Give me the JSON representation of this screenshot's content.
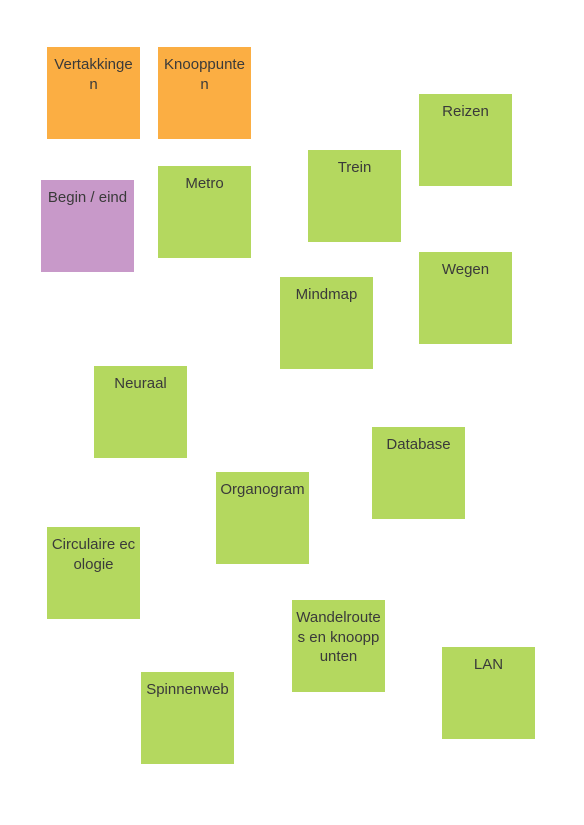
{
  "colors": {
    "orange": "#fbae43",
    "purple": "#c899c9",
    "green": "#b4d85f"
  },
  "notes": [
    {
      "id": "vertakkingen",
      "text": "Vertakkingen",
      "color": "orange"
    },
    {
      "id": "knooppunten",
      "text": "Knooppunten",
      "color": "orange"
    },
    {
      "id": "begin-eind",
      "text": "Begin / eind",
      "color": "purple"
    },
    {
      "id": "metro",
      "text": "Metro",
      "color": "green"
    },
    {
      "id": "trein",
      "text": "Trein",
      "color": "green"
    },
    {
      "id": "reizen",
      "text": "Reizen",
      "color": "green"
    },
    {
      "id": "mindmap",
      "text": "Mindmap",
      "color": "green"
    },
    {
      "id": "wegen",
      "text": "Wegen",
      "color": "green"
    },
    {
      "id": "neuraal",
      "text": "Neuraal",
      "color": "green"
    },
    {
      "id": "database",
      "text": "Database",
      "color": "green"
    },
    {
      "id": "organogram",
      "text": "Organogram",
      "color": "green"
    },
    {
      "id": "circulaire-ecologie",
      "text": "Circulaire ecologie",
      "color": "green"
    },
    {
      "id": "wandelroutes",
      "text": "Wandelroutes en knooppunten",
      "color": "green"
    },
    {
      "id": "lan",
      "text": "LAN",
      "color": "green"
    },
    {
      "id": "spinnenweb",
      "text": "Spinnenweb",
      "color": "green"
    }
  ]
}
